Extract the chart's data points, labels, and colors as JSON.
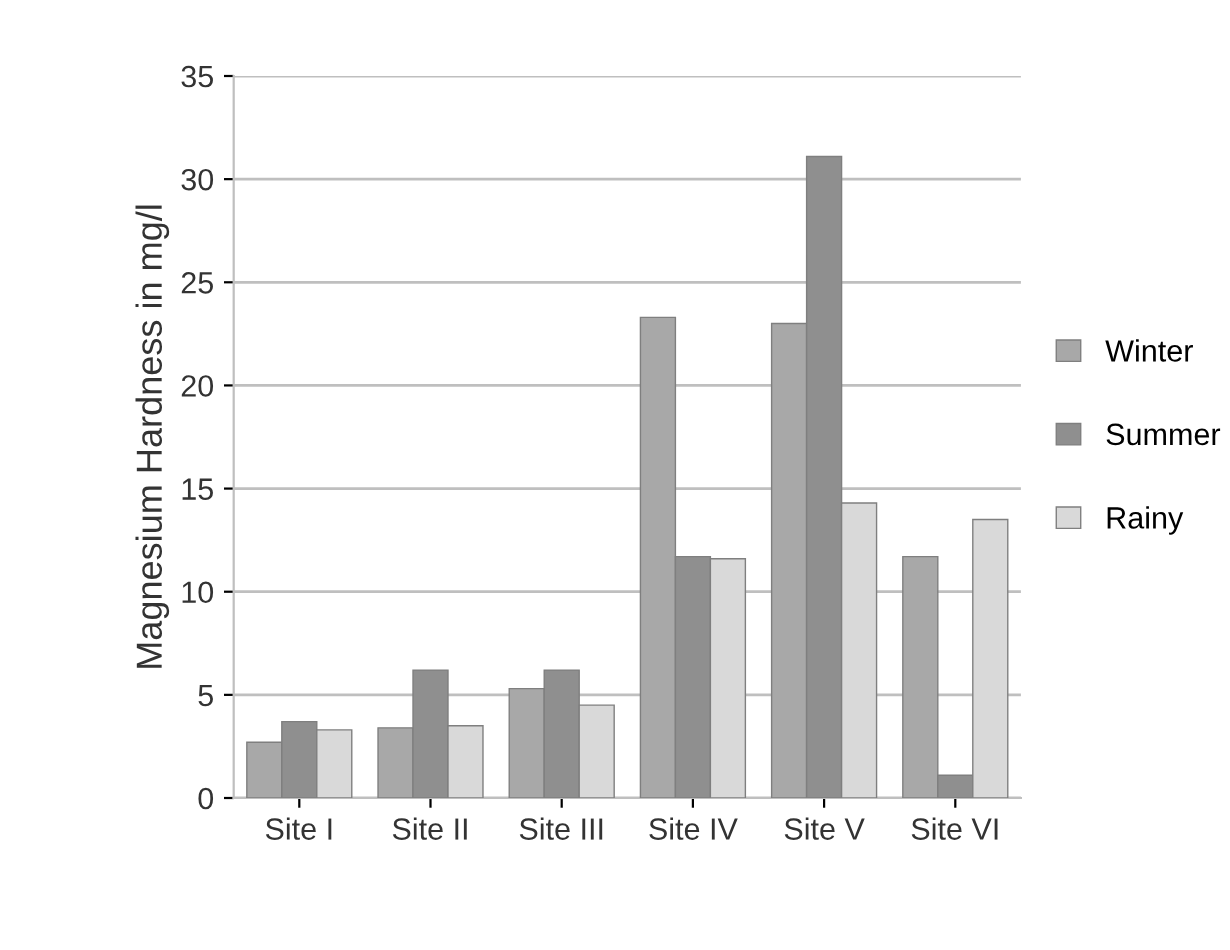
{
  "chart_data": {
    "type": "bar",
    "ylabel": "Magnesium Hardness in mg/l",
    "categories": [
      "Site I",
      "Site II",
      "Site III",
      "Site IV",
      "Site V",
      "Site VI"
    ],
    "series": [
      {
        "name": "Winter",
        "color": "#a8a8a8",
        "values": [
          2.7,
          3.4,
          5.3,
          23.3,
          23.0,
          11.7
        ]
      },
      {
        "name": "Summer",
        "color": "#8f8f8f",
        "values": [
          3.7,
          6.2,
          6.2,
          11.7,
          31.1,
          1.1
        ]
      },
      {
        "name": "Rainy",
        "color": "#d9d9d9",
        "values": [
          3.3,
          3.5,
          4.5,
          11.6,
          14.3,
          13.5
        ]
      }
    ],
    "ylim": [
      0,
      35
    ],
    "yticks": [
      0,
      5,
      10,
      15,
      20,
      25,
      30,
      35
    ],
    "grid": "y",
    "legend": "right"
  }
}
